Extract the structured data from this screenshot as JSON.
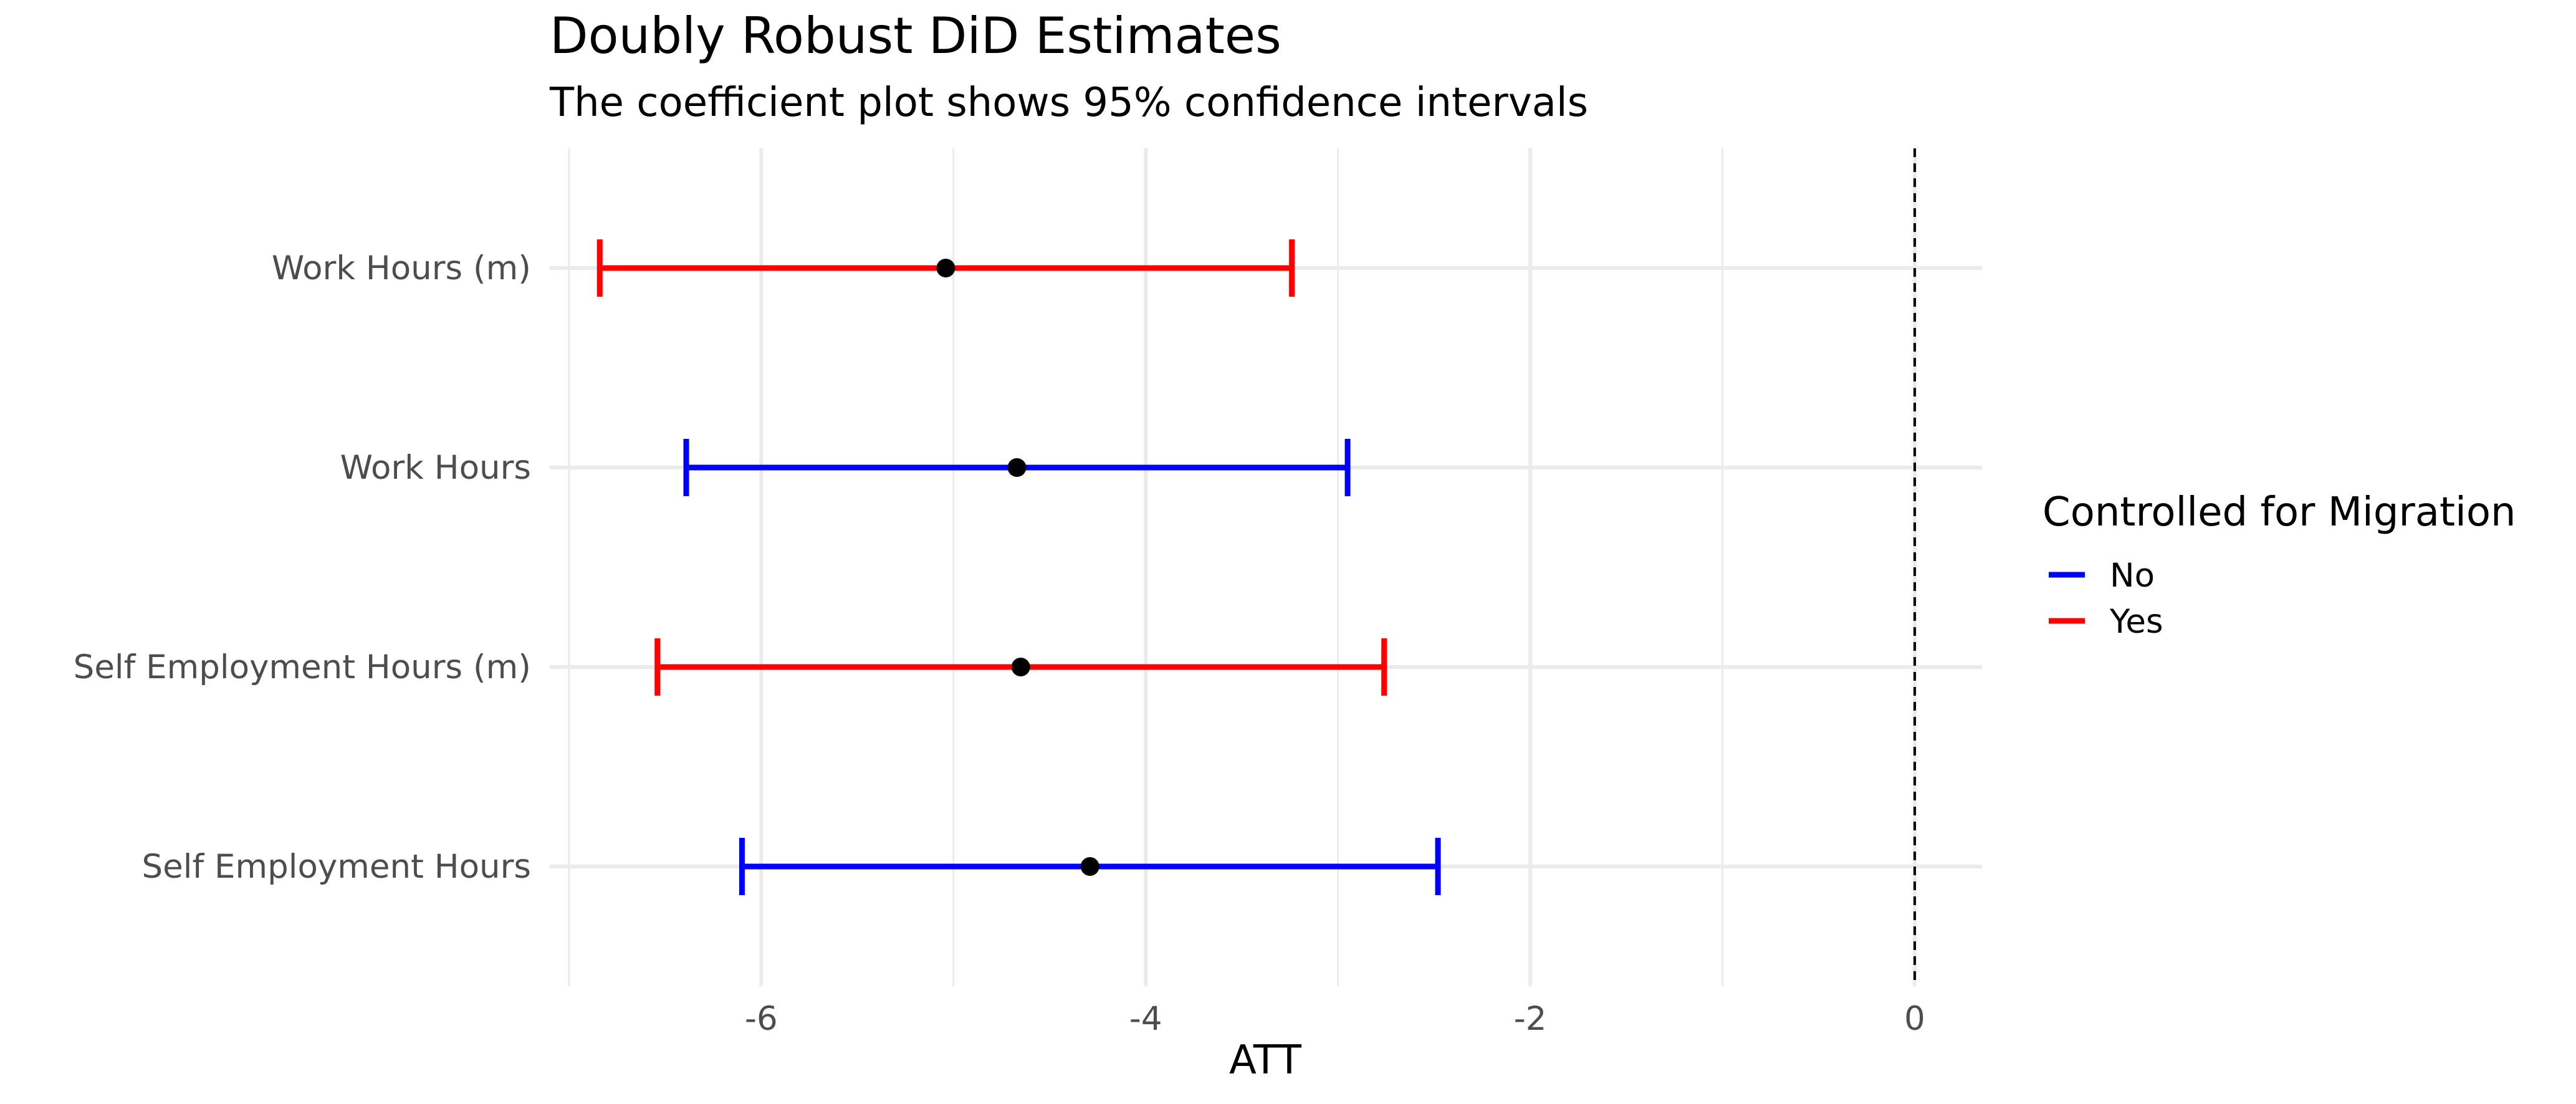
{
  "chart_data": {
    "type": "errorbar",
    "title": "Doubly Robust DiD Estimates",
    "subtitle": "The coefficient plot shows 95% confidence intervals",
    "xlabel": "ATT",
    "ylabel": "",
    "xlim": [
      -7.1,
      0.35
    ],
    "xticks": [
      -6,
      -4,
      -2,
      0
    ],
    "reference_line": {
      "x": 0,
      "style": "dashed"
    },
    "categories": [
      "Work Hours (m)",
      "Work Hours",
      "Self Employment Hours (m)",
      "Self Employment Hours"
    ],
    "points": [
      {
        "label": "Work Hours (m)",
        "estimate": -5.04,
        "lower": -6.84,
        "upper": -3.24,
        "group": "Yes"
      },
      {
        "label": "Work Hours",
        "estimate": -4.67,
        "lower": -6.39,
        "upper": -2.95,
        "group": "No"
      },
      {
        "label": "Self Employment Hours (m)",
        "estimate": -4.65,
        "lower": -6.54,
        "upper": -2.76,
        "group": "Yes"
      },
      {
        "label": "Self Employment Hours",
        "estimate": -4.29,
        "lower": -6.1,
        "upper": -2.48,
        "group": "No"
      }
    ],
    "legend": {
      "title": "Controlled for Migration",
      "placement": "right",
      "items": [
        {
          "name": "No",
          "color": "#0000ff"
        },
        {
          "name": "Yes",
          "color": "#ff0000"
        }
      ]
    },
    "point_color": "#000000",
    "grid": true
  }
}
